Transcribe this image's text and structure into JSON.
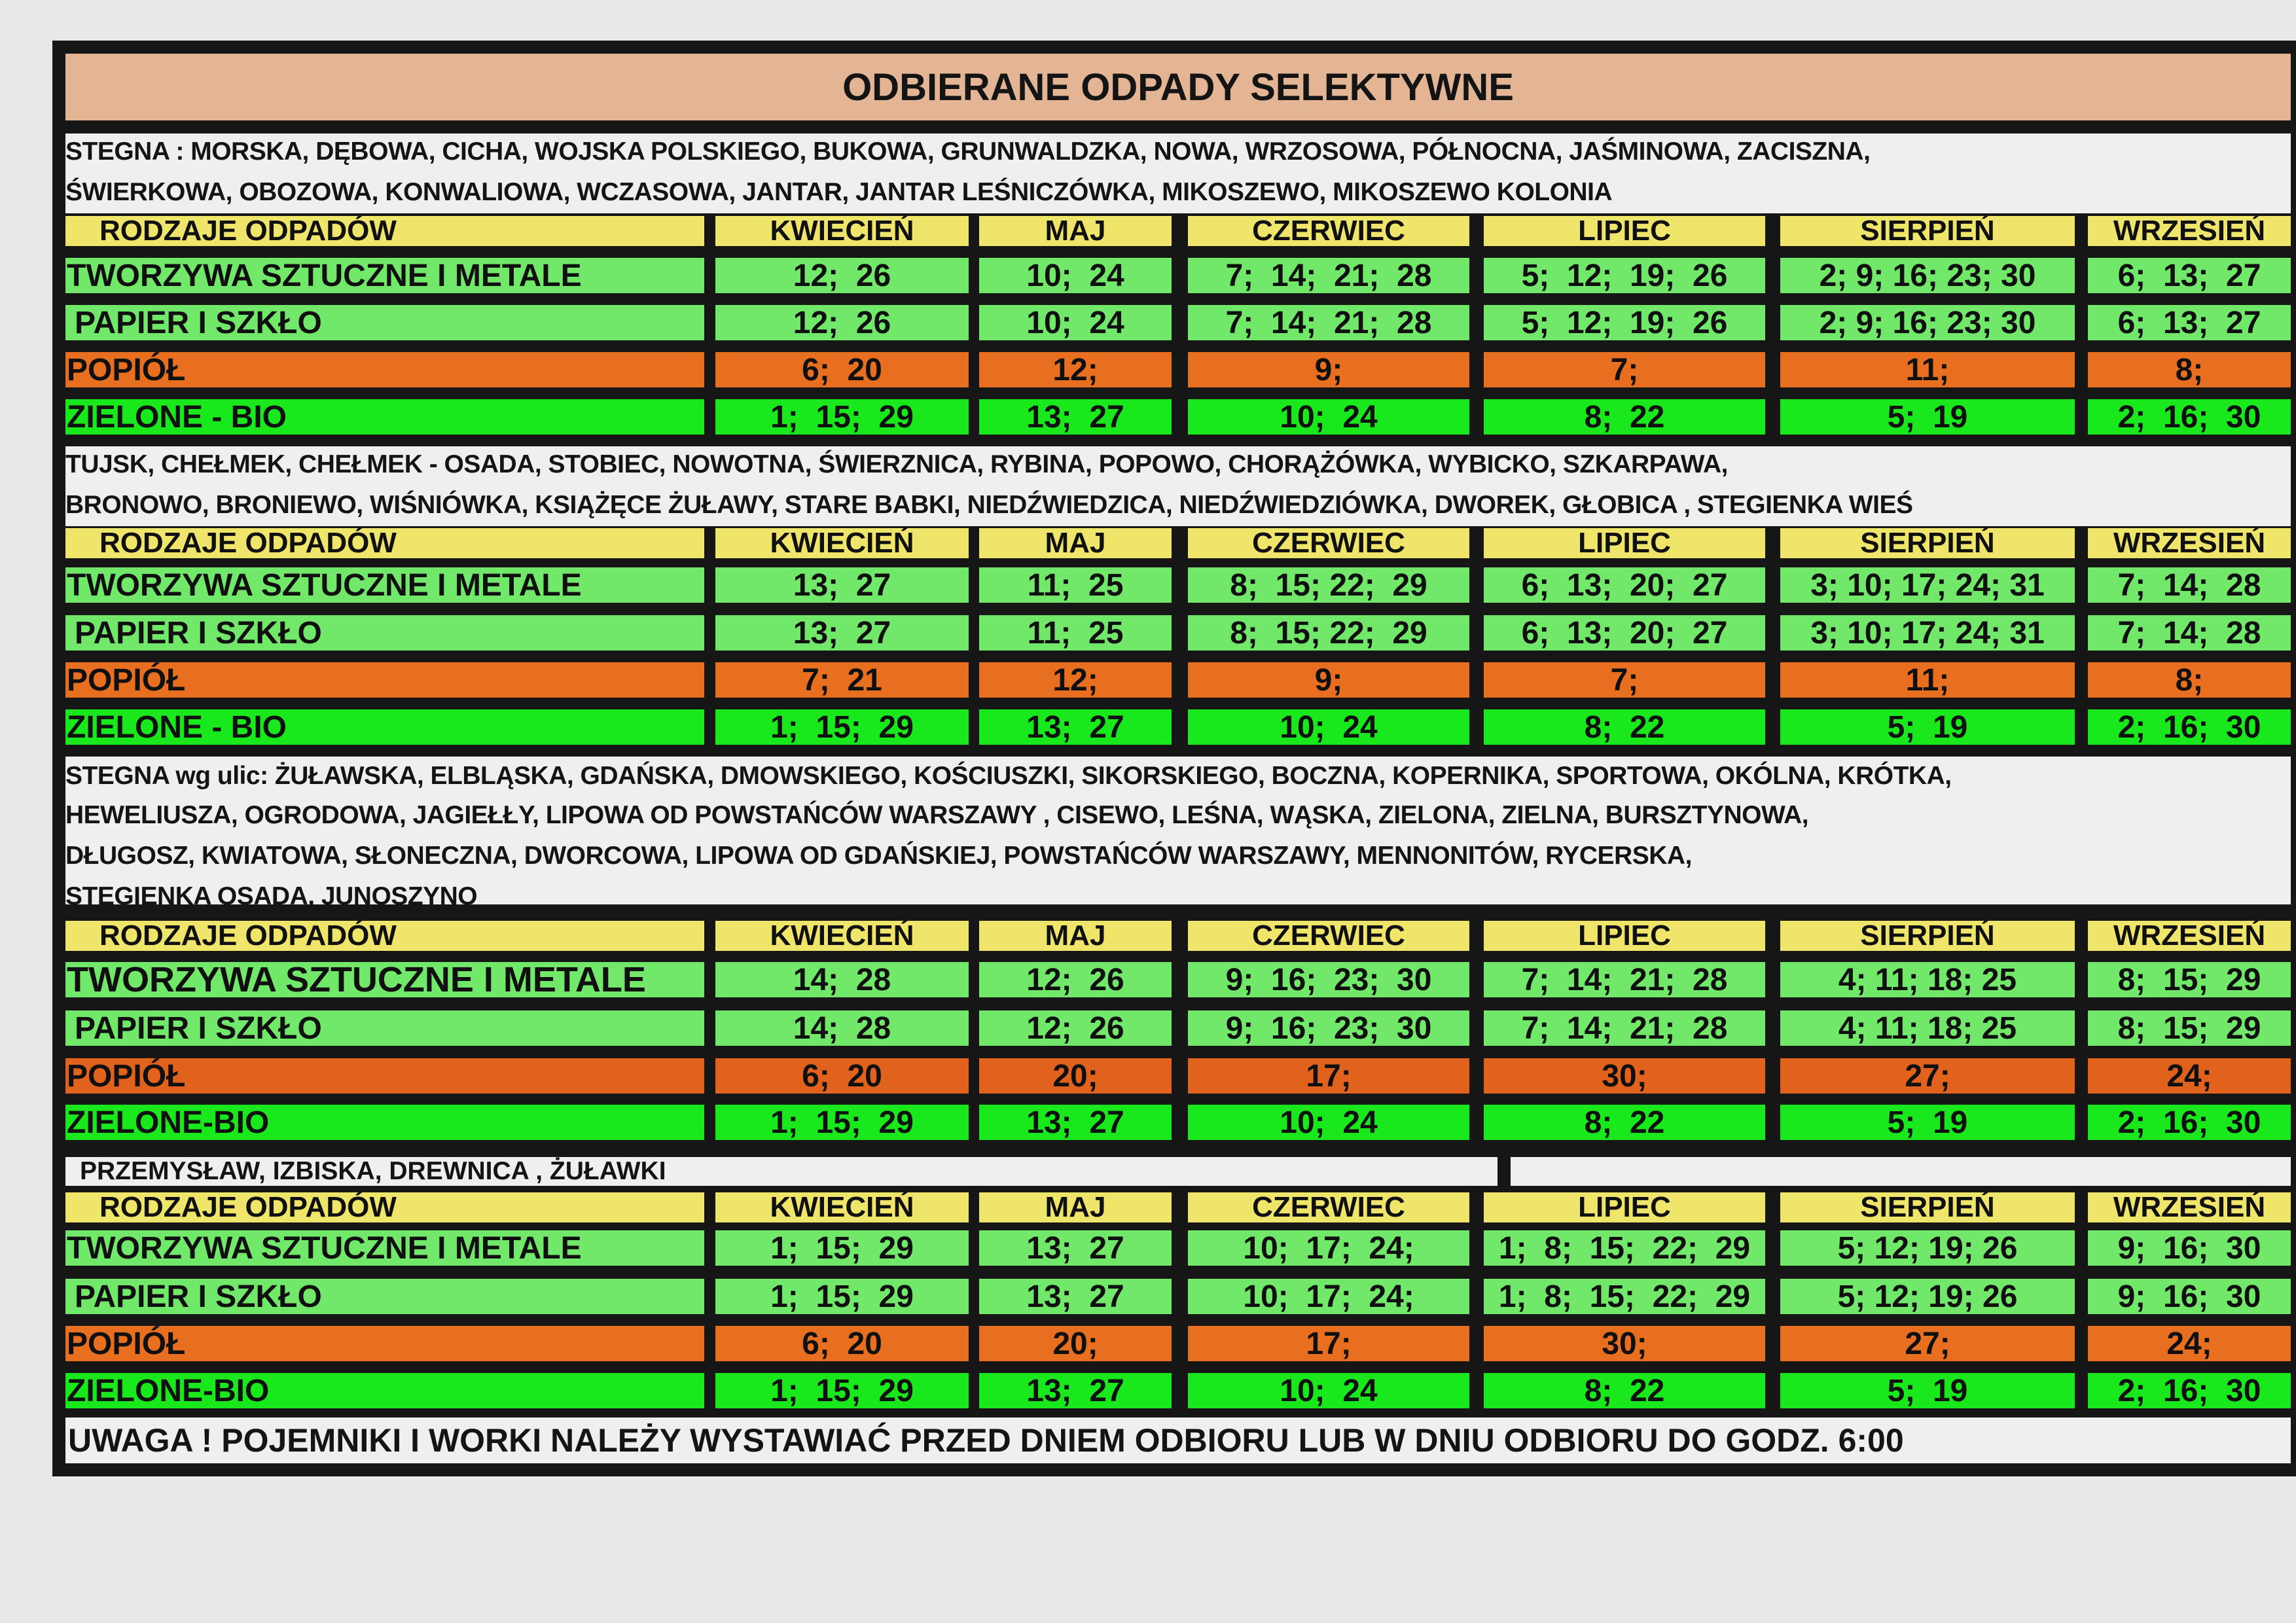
{
  "title": "ODBIERANE ODPADY SELEKTYWNE",
  "header_label": "RODZAJE ODPADÓW",
  "months": [
    "KWIECIEŃ",
    "MAJ",
    "CZERWIEC",
    "LIPIEC",
    "SIERPIEŃ",
    "WRZESIEŃ"
  ],
  "sections": [
    {
      "streets": [
        "STEGNA : MORSKA, DĘBOWA, CICHA, WOJSKA POLSKIEGO, BUKOWA, GRUNWALDZKA, NOWA, WRZOSOWA, PÓŁNOCNA, JAŚMINOWA, ZACISZNA,",
        "ŚWIERKOWA, OBOZOWA, KONWALIOWA, WCZASOWA, JANTAR, JANTAR LEŚNICZÓWKA, MIKOSZEWO, MIKOSZEWO KOLONIA"
      ],
      "rows": [
        {
          "label": "TWORZYWA SZTUCZNE I METALE",
          "color": "lgreen",
          "cells": [
            "12;  26",
            "10;  24",
            "7;  14;  21;  28",
            "5;  12;  19;  26",
            "2; 9; 16; 23; 30",
            "6;  13;  27"
          ]
        },
        {
          "label": "PAPIER I SZKŁO",
          "color": "lgreen",
          "cells": [
            "12;  26",
            "10;  24",
            "7;  14;  21;  28",
            "5;  12;  19;  26",
            "2; 9; 16; 23; 30",
            "6;  13;  27"
          ]
        },
        {
          "label": "POPIÓŁ",
          "color": "orange",
          "cells": [
            "6;  20",
            "12;",
            "9;",
            "7;",
            "11;",
            "8;"
          ]
        },
        {
          "label": "ZIELONE - BIO",
          "color": "bgreen",
          "cells": [
            "1;  15;  29",
            "13;  27",
            "10;  24",
            "8;  22",
            "5;  19",
            "2;  16;  30"
          ]
        }
      ]
    },
    {
      "streets": [
        "TUJSK, CHEŁMEK, CHEŁMEK - OSADA, STOBIEC, NOWOTNA, ŚWIERZNICA, RYBINA, POPOWO, CHORĄŻÓWKA, WYBICKO, SZKARPAWA,",
        "BRONOWO, BRONIEWO, WIŚNIÓWKA, KSIĄŻĘCE ŻUŁAWY, STARE BABKI, NIEDŹWIEDZICA, NIEDŹWIEDZIÓWKA, DWOREK, GŁOBICA , STEGIENKA WIEŚ"
      ],
      "rows": [
        {
          "label": "TWORZYWA SZTUCZNE I METALE",
          "color": "lgreen",
          "cells": [
            "13;  27",
            "11;  25",
            "8;  15; 22;  29",
            "6;  13;  20;  27",
            "3; 10; 17; 24; 31",
            "7;  14;  28"
          ]
        },
        {
          "label": "PAPIER I SZKŁO",
          "color": "lgreen",
          "cells": [
            "13;  27",
            "11;  25",
            "8;  15; 22;  29",
            "6;  13;  20;  27",
            "3; 10; 17; 24; 31",
            "7;  14;  28"
          ]
        },
        {
          "label": "POPIÓŁ",
          "color": "orange",
          "cells": [
            "7;  21",
            "12;",
            "9;",
            "7;",
            "11;",
            "8;"
          ]
        },
        {
          "label": "ZIELONE - BIO",
          "color": "bgreen",
          "cells": [
            "1;  15;  29",
            "13;  27",
            "10;  24",
            "8;  22",
            "5;  19",
            "2;  16;  30"
          ]
        }
      ]
    },
    {
      "streets": [
        "STEGNA wg ulic:  ŻUŁAWSKA, ELBLĄSKA, GDAŃSKA, DMOWSKIEGO, KOŚCIUSZKI, SIKORSKIEGO, BOCZNA, KOPERNIKA, SPORTOWA, OKÓLNA, KRÓTKA,",
        "HEWELIUSZA, OGRODOWA,  JAGIEŁŁY,  LIPOWA OD POWSTAŃCÓW WARSZAWY , CISEWO, LEŚNA, WĄSKA, ZIELONA, ZIELNA, BURSZTYNOWA,",
        "DŁUGOSZ, KWIATOWA, SŁONECZNA, DWORCOWA, LIPOWA OD GDAŃSKIEJ, POWSTAŃCÓW WARSZAWY, MENNONITÓW, RYCERSKA,",
        "STEGIENKA OSADA, JUNOSZYNO"
      ],
      "rows": [
        {
          "label": "TWORZYWA SZTUCZNE I METALE",
          "color": "lgreen",
          "cells": [
            "14;  28",
            "12;  26",
            "9;  16;  23;  30",
            "7;  14;  21;  28",
            "4; 11; 18; 25",
            "8;  15;  29"
          ]
        },
        {
          "label": "PAPIER I SZKŁO",
          "color": "lgreen",
          "cells": [
            "14;  28",
            "12;  26",
            "9;  16;  23;  30",
            "7;  14;  21;  28",
            "4; 11; 18; 25",
            "8;  15;  29"
          ]
        },
        {
          "label": "POPIÓŁ",
          "color": "orange2",
          "cells": [
            "6;  20",
            "20;",
            "17;",
            "30;",
            "27;",
            "24;"
          ]
        },
        {
          "label": "ZIELONE-BIO",
          "color": "bgreen",
          "cells": [
            "1;  15;  29",
            "13;  27",
            "10;  24",
            "8;  22",
            "5;  19",
            "2;  16;  30"
          ]
        }
      ]
    },
    {
      "streets": [
        "PRZEMYSŁAW, IZBISKA, DREWNICA , ŻUŁAWKI"
      ],
      "rows": [
        {
          "label": "TWORZYWA SZTUCZNE I METALE",
          "color": "lgreen",
          "cells": [
            "1;  15;  29",
            "13;  27",
            "10;  17;  24;",
            "1;  8;  15;  22;  29",
            "5; 12; 19; 26",
            "9;  16;  30"
          ]
        },
        {
          "label": "PAPIER I SZKŁO",
          "color": "lgreen",
          "cells": [
            "1;  15;  29",
            "13;  27",
            "10;  17;  24;",
            "1;  8;  15;  22;  29",
            "5; 12; 19; 26",
            "9;  16;  30"
          ]
        },
        {
          "label": "POPIÓŁ",
          "color": "orange",
          "cells": [
            "6;  20",
            "20;",
            "17;",
            "30;",
            "27;",
            "24;"
          ]
        },
        {
          "label": "ZIELONE-BIO",
          "color": "bgreen",
          "cells": [
            "1;  15;  29",
            "13;  27",
            "10;  24",
            "8;  22",
            "5;  19",
            "2;  16;  30"
          ]
        }
      ]
    }
  ],
  "footer": "UWAGA ! POJEMNIKI I WORKI NALEŻY WYSTAWIAĆ PRZED DNIEM ODBIORU LUB W DNIU ODBIORU DO GODZ. 6:00"
}
